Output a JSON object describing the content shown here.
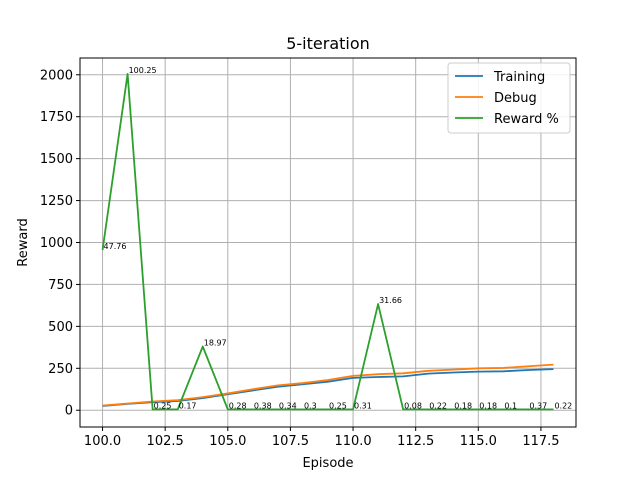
{
  "chart_data": {
    "type": "line",
    "title": "5-iteration",
    "xlabel": "Episode",
    "ylabel": "Reward",
    "xlim": [
      99.1,
      118.9
    ],
    "ylim": [
      -100,
      2100
    ],
    "grid": true,
    "legend_position": "top-right",
    "x": [
      100,
      101,
      102,
      103,
      104,
      105,
      106,
      107,
      108,
      109,
      110,
      111,
      112,
      113,
      114,
      115,
      116,
      117,
      118
    ],
    "xticks": [
      "100.0",
      "102.5",
      "105.0",
      "107.5",
      "110.0",
      "112.5",
      "115.0",
      "117.5"
    ],
    "yticks": [
      "0",
      "250",
      "500",
      "750",
      "1000",
      "1250",
      "1500",
      "1750",
      "2000"
    ],
    "series": [
      {
        "name": "Training",
        "color": "#1f77b4",
        "values": [
          25,
          38,
          48,
          55,
          72,
          95,
          118,
          140,
          155,
          170,
          193,
          198,
          202,
          218,
          225,
          230,
          232,
          240,
          245
        ]
      },
      {
        "name": "Debug",
        "color": "#ff7f0e",
        "values": [
          28,
          40,
          52,
          60,
          78,
          100,
          125,
          148,
          162,
          180,
          205,
          215,
          220,
          235,
          242,
          250,
          252,
          262,
          272
        ]
      },
      {
        "name": "Reward %",
        "color": "#2ca02c",
        "values": [
          955,
          2005,
          5,
          5,
          380,
          5,
          5,
          5,
          5,
          5,
          5,
          633,
          5,
          5,
          5,
          5,
          5,
          5,
          5
        ]
      }
    ],
    "annotations": [
      "47.76",
      "100.25",
      "0.25",
      "0.17",
      "18.97",
      "0.28",
      "0.38",
      "0.34",
      "0.3",
      "0.25",
      "0.31",
      "31.66",
      "0.08",
      "0.22",
      "0.18",
      "0.18",
      "0.1",
      "0.37",
      "0.22"
    ]
  }
}
